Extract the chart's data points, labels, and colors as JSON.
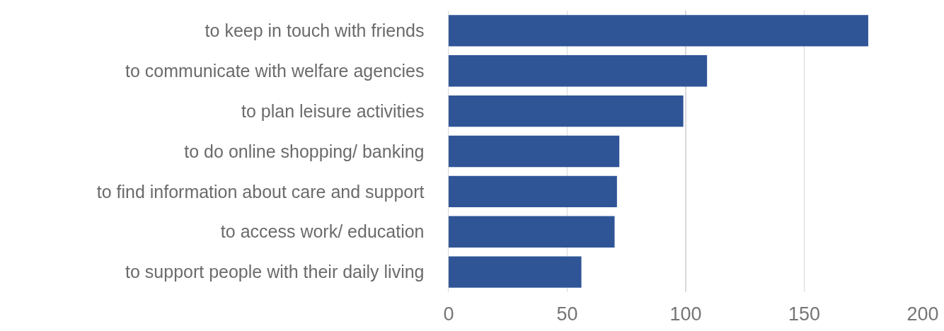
{
  "chart_data": {
    "type": "bar",
    "orientation": "horizontal",
    "categories": [
      "to keep in touch with friends",
      "to communicate with welfare agencies",
      "to plan leisure activities",
      "to do online shopping/ banking",
      "to find information about care and support",
      "to access work/ education",
      "to support people with their daily living"
    ],
    "values": [
      177,
      109,
      99,
      72,
      71,
      70,
      56
    ],
    "color": "#2f5597",
    "xlim": [
      0,
      200
    ],
    "xticks": [
      0,
      50,
      100,
      150,
      200
    ],
    "grid": "x",
    "legend": false
  }
}
